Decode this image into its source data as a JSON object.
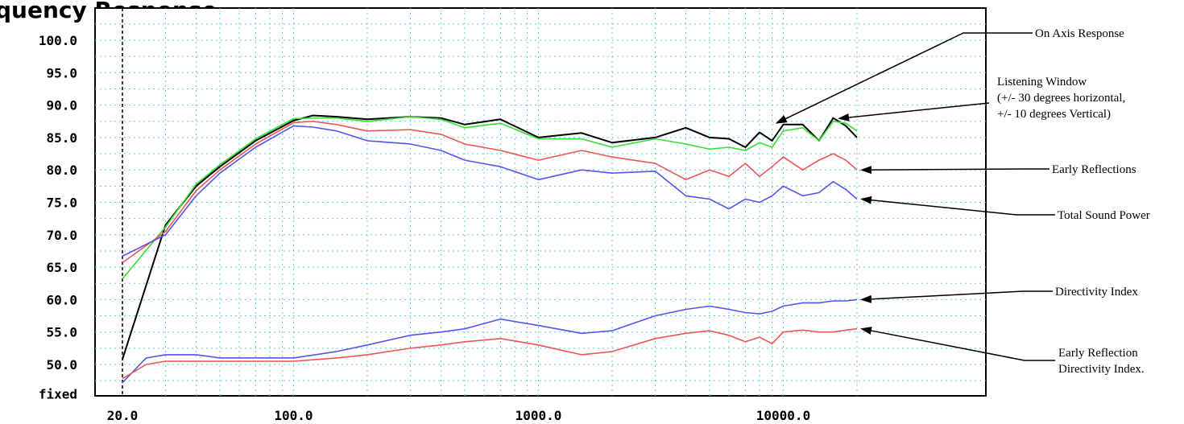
{
  "title_fragment": "quency Response",
  "chart_data": {
    "type": "line",
    "xscale": "log",
    "xlim": [
      20,
      20000
    ],
    "ylim": [
      45,
      105
    ],
    "grid": true,
    "y_ticks": [
      "100.0",
      "95.0",
      "90.0",
      "85.0",
      "80.0",
      "75.0",
      "70.0",
      "65.0",
      "60.0",
      "55.0",
      "50.0"
    ],
    "y_tick_values": [
      100,
      95,
      90,
      85,
      80,
      75,
      70,
      65,
      60,
      55,
      50
    ],
    "y_bottom_label": "fixed",
    "x_ticks": [
      "20.0",
      "100.0",
      "1000.0",
      "10000.0"
    ],
    "x_tick_values": [
      20,
      100,
      1000,
      10000
    ],
    "series": [
      {
        "name": "On Axis Response",
        "color": "#000000",
        "x": [
          20,
          30,
          40,
          50,
          70,
          100,
          120,
          150,
          200,
          300,
          400,
          500,
          700,
          1000,
          1500,
          2000,
          3000,
          4000,
          5000,
          6000,
          7000,
          8000,
          9000,
          10000,
          12000,
          14000,
          16000,
          18000,
          20000
        ],
        "y": [
          50.8,
          71.5,
          77.5,
          80.5,
          84.5,
          87.6,
          88.4,
          88.2,
          87.8,
          88.2,
          88.0,
          87.0,
          87.8,
          85.0,
          85.7,
          84.2,
          85.0,
          86.5,
          85.0,
          84.8,
          83.5,
          85.8,
          84.5,
          87.0,
          87.0,
          84.5,
          88.0,
          86.8,
          85.0
        ]
      },
      {
        "name": "Listening Window",
        "color": "#33e033",
        "x": [
          20,
          30,
          40,
          50,
          70,
          100,
          120,
          150,
          200,
          300,
          400,
          500,
          700,
          1000,
          1500,
          2000,
          3000,
          4000,
          5000,
          6000,
          7000,
          8000,
          9000,
          10000,
          12000,
          14000,
          16000,
          18000,
          20000
        ],
        "y": [
          63.2,
          71.2,
          77.8,
          80.8,
          84.8,
          87.9,
          88.0,
          88.0,
          87.5,
          88.2,
          87.8,
          86.5,
          87.2,
          84.8,
          84.8,
          83.5,
          84.8,
          84.0,
          83.2,
          83.5,
          83.0,
          84.2,
          83.5,
          86.0,
          86.5,
          84.5,
          87.5,
          87.2,
          86.0
        ]
      },
      {
        "name": "Early Reflections",
        "color": "#ee5555",
        "x": [
          20,
          30,
          40,
          50,
          70,
          100,
          120,
          150,
          200,
          300,
          400,
          500,
          700,
          1000,
          1500,
          2000,
          3000,
          4000,
          5000,
          6000,
          7000,
          8000,
          9000,
          10000,
          12000,
          14000,
          16000,
          18000,
          20000
        ],
        "y": [
          65.7,
          70.5,
          76.8,
          80.0,
          84.0,
          87.3,
          87.5,
          87.0,
          86.0,
          86.2,
          85.5,
          84.0,
          83.0,
          81.5,
          83.0,
          82.0,
          81.0,
          78.5,
          80.0,
          79.0,
          81.0,
          79.0,
          80.5,
          82.0,
          80.0,
          81.5,
          82.5,
          81.5,
          80.0
        ]
      },
      {
        "name": "Total Sound Power",
        "color": "#5555ee",
        "x": [
          20,
          30,
          40,
          50,
          70,
          100,
          120,
          150,
          200,
          300,
          400,
          500,
          700,
          1000,
          1500,
          2000,
          3000,
          4000,
          5000,
          6000,
          7000,
          8000,
          9000,
          10000,
          12000,
          14000,
          16000,
          18000,
          20000
        ],
        "y": [
          66.7,
          70.0,
          76.0,
          79.5,
          83.5,
          86.8,
          86.6,
          86.0,
          84.5,
          84.0,
          83.0,
          81.5,
          80.5,
          78.5,
          80.0,
          79.5,
          79.8,
          76.0,
          75.5,
          74.0,
          75.5,
          75.0,
          76.0,
          77.5,
          76.0,
          76.5,
          78.2,
          77.0,
          75.5
        ]
      },
      {
        "name": "Directivity Index",
        "color": "#5555ee",
        "x": [
          20,
          25,
          30,
          40,
          50,
          70,
          100,
          150,
          200,
          300,
          400,
          500,
          700,
          1000,
          1500,
          2000,
          3000,
          4000,
          5000,
          6000,
          7000,
          8000,
          9000,
          10000,
          12000,
          14000,
          16000,
          18000,
          20000
        ],
        "y": [
          47.2,
          51.0,
          51.5,
          51.5,
          51.0,
          51.0,
          51.0,
          52.0,
          53.0,
          54.5,
          55.0,
          55.5,
          57.0,
          56.0,
          54.8,
          55.2,
          57.5,
          58.5,
          59.0,
          58.5,
          58.0,
          57.8,
          58.2,
          59.0,
          59.5,
          59.5,
          59.8,
          59.8,
          60.0
        ]
      },
      {
        "name": "Early Reflection Directivity Index.",
        "color": "#ee5555",
        "x": [
          20,
          25,
          30,
          40,
          50,
          70,
          100,
          150,
          200,
          300,
          400,
          500,
          700,
          1000,
          1500,
          2000,
          3000,
          4000,
          5000,
          6000,
          7000,
          8000,
          9000,
          10000,
          12000,
          14000,
          16000,
          18000,
          20000
        ],
        "y": [
          47.8,
          50.0,
          50.5,
          50.5,
          50.5,
          50.5,
          50.5,
          51.0,
          51.5,
          52.5,
          53.0,
          53.5,
          54.0,
          53.0,
          51.5,
          52.0,
          54.0,
          54.8,
          55.2,
          54.5,
          53.5,
          54.2,
          53.2,
          55.0,
          55.3,
          55.0,
          55.0,
          55.3,
          55.5
        ]
      }
    ]
  },
  "annotations": [
    {
      "lines": [
        "On Axis Response"
      ],
      "target": [
        9000,
        86.5
      ]
    },
    {
      "lines": [
        "Listening Window",
        "(+/- 30 degrees horizontal,",
        "+/- 10 degrees Vertical)"
      ],
      "target": [
        18000,
        87.2
      ]
    },
    {
      "lines": [
        "Early Reflections"
      ],
      "target": [
        20000,
        80.0
      ]
    },
    {
      "lines": [
        "Total Sound Power"
      ],
      "target": [
        20000,
        75.5
      ]
    },
    {
      "lines": [
        "Directivity Index"
      ],
      "target": [
        20000,
        60.0
      ]
    },
    {
      "lines": [
        "Early Reflection",
        "Directivity Index."
      ],
      "target": [
        20000,
        55.5
      ]
    }
  ]
}
